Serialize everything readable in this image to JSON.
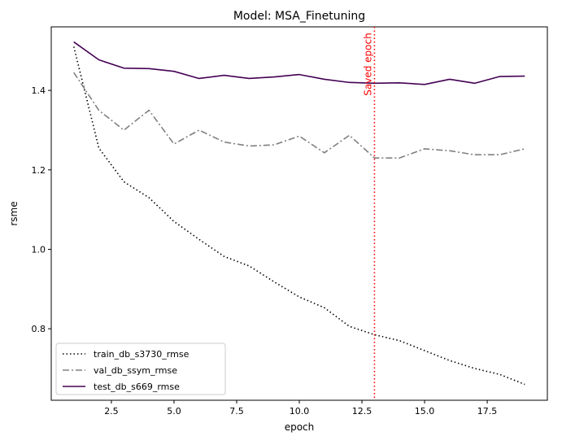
{
  "chart_data": {
    "type": "line",
    "title": "Model: MSA_Finetuning",
    "xlabel": "epoch",
    "ylabel": "rsme",
    "xlim": [
      0.1,
      19.9
    ],
    "ylim": [
      0.62,
      1.56
    ],
    "xticks": [
      2.5,
      5.0,
      7.5,
      10.0,
      12.5,
      15.0,
      17.5
    ],
    "xtick_labels": [
      "2.5",
      "5.0",
      "7.5",
      "10.0",
      "12.5",
      "15.0",
      "17.5"
    ],
    "yticks": [
      0.8,
      1.0,
      1.2,
      1.4
    ],
    "ytick_labels": [
      "0.8",
      "1.0",
      "1.2",
      "1.4"
    ],
    "grid": false,
    "legend_position": "lower-left",
    "x": [
      1,
      2,
      3,
      4,
      5,
      6,
      7,
      8,
      9,
      10,
      11,
      12,
      13,
      14,
      15,
      16,
      17,
      18,
      19
    ],
    "series": [
      {
        "name": "train_db_s3730_rmse",
        "color": "#000000",
        "style": "dotted",
        "values": [
          1.51,
          1.255,
          1.17,
          1.13,
          1.07,
          1.025,
          0.982,
          0.958,
          0.918,
          0.88,
          0.853,
          0.806,
          0.785,
          0.77,
          0.745,
          0.72,
          0.7,
          0.685,
          0.66
        ]
      },
      {
        "name": "val_db_ssym_rmse",
        "color": "#808080",
        "style": "dashdot",
        "values": [
          1.445,
          1.35,
          1.3,
          1.35,
          1.265,
          1.3,
          1.27,
          1.26,
          1.263,
          1.285,
          1.243,
          1.287,
          1.23,
          1.23,
          1.253,
          1.248,
          1.238,
          1.238,
          1.253
        ]
      },
      {
        "name": "test_db_s669_rmse",
        "color": "#440154",
        "style": "solid",
        "values": [
          1.522,
          1.477,
          1.456,
          1.455,
          1.448,
          1.43,
          1.438,
          1.43,
          1.434,
          1.44,
          1.428,
          1.42,
          1.418,
          1.419,
          1.415,
          1.428,
          1.418,
          1.435,
          1.436
        ]
      }
    ],
    "vline": {
      "x": 13,
      "label": "Saved epoch",
      "color": "#ff0000",
      "style": "dotted"
    }
  }
}
